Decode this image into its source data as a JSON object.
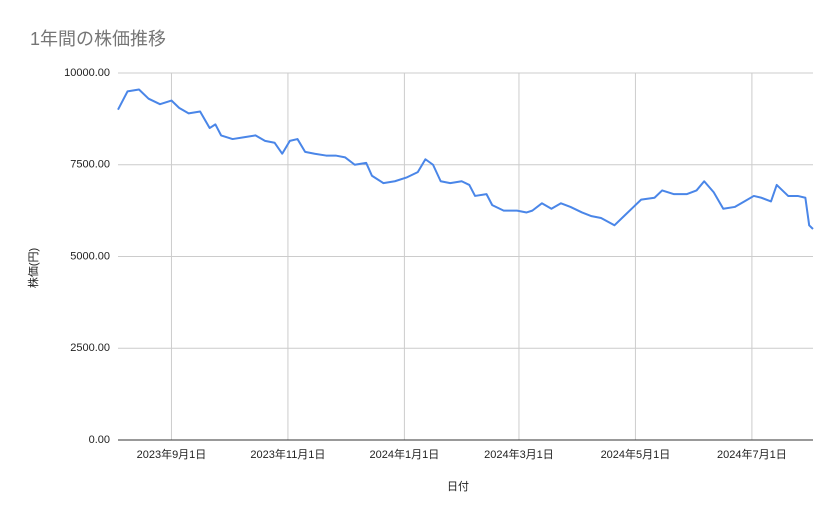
{
  "chart_data": {
    "type": "line",
    "title": "1年間の株価推移",
    "x_label": "日付",
    "y_label": "株価(円)",
    "x": [
      "2023-08-04",
      "2023-08-09",
      "2023-08-15",
      "2023-08-20",
      "2023-08-26",
      "2023-09-01",
      "2023-09-05",
      "2023-09-10",
      "2023-09-16",
      "2023-09-21",
      "2023-09-24",
      "2023-09-27",
      "2023-10-03",
      "2023-10-09",
      "2023-10-15",
      "2023-10-20",
      "2023-10-25",
      "2023-10-29",
      "2023-11-02",
      "2023-11-06",
      "2023-11-10",
      "2023-11-15",
      "2023-11-21",
      "2023-11-26",
      "2023-12-01",
      "2023-12-06",
      "2023-12-12",
      "2023-12-15",
      "2023-12-21",
      "2023-12-27",
      "2024-01-02",
      "2024-01-08",
      "2024-01-12",
      "2024-01-16",
      "2024-01-20",
      "2024-01-25",
      "2024-01-31",
      "2024-02-04",
      "2024-02-07",
      "2024-02-13",
      "2024-02-16",
      "2024-02-22",
      "2024-02-29",
      "2024-03-05",
      "2024-03-08",
      "2024-03-13",
      "2024-03-18",
      "2024-03-23",
      "2024-03-28",
      "2024-04-03",
      "2024-04-08",
      "2024-04-13",
      "2024-04-20",
      "2024-04-25",
      "2024-04-30",
      "2024-05-04",
      "2024-05-11",
      "2024-05-15",
      "2024-05-21",
      "2024-05-28",
      "2024-06-02",
      "2024-06-06",
      "2024-06-11",
      "2024-06-16",
      "2024-06-22",
      "2024-06-27",
      "2024-07-02",
      "2024-07-06",
      "2024-07-11",
      "2024-07-14",
      "2024-07-20",
      "2024-07-25",
      "2024-07-29",
      "2024-07-31",
      "2024-08-02"
    ],
    "series": [
      {
        "name": "株価",
        "color": "#4a86e8",
        "values": [
          9000,
          9500,
          9550,
          9300,
          9150,
          9250,
          9050,
          8900,
          8950,
          8500,
          8600,
          8300,
          8200,
          8250,
          8300,
          8150,
          8100,
          7800,
          8150,
          8200,
          7850,
          7800,
          7750,
          7750,
          7700,
          7500,
          7550,
          7200,
          7000,
          7050,
          7150,
          7300,
          7650,
          7500,
          7050,
          7000,
          7050,
          6950,
          6650,
          6700,
          6400,
          6250,
          6250,
          6200,
          6250,
          6450,
          6300,
          6450,
          6350,
          6200,
          6100,
          6050,
          5850,
          6100,
          6350,
          6550,
          6600,
          6800,
          6700,
          6700,
          6800,
          7050,
          6750,
          6300,
          6350,
          6500,
          6650,
          6600,
          6500,
          6950,
          6650,
          6650,
          6600,
          5850,
          5750
        ]
      }
    ],
    "xlim": [
      "2023-08-04",
      "2024-08-02"
    ],
    "xticks": [
      {
        "value": "2023-09-01",
        "label": "2023年9月1日"
      },
      {
        "value": "2023-11-01",
        "label": "2023年11月1日"
      },
      {
        "value": "2024-01-01",
        "label": "2024年1月1日"
      },
      {
        "value": "2024-03-01",
        "label": "2024年3月1日"
      },
      {
        "value": "2024-05-01",
        "label": "2024年5月1日"
      },
      {
        "value": "2024-07-01",
        "label": "2024年7月1日"
      }
    ],
    "ylim": [
      0,
      10000
    ],
    "yticks": [
      {
        "value": 0,
        "label": "0.00"
      },
      {
        "value": 2500,
        "label": "2500.00"
      },
      {
        "value": 5000,
        "label": "5000.00"
      },
      {
        "value": 7500,
        "label": "7500.00"
      },
      {
        "value": 10000,
        "label": "10000.00"
      }
    ],
    "grid": true
  }
}
